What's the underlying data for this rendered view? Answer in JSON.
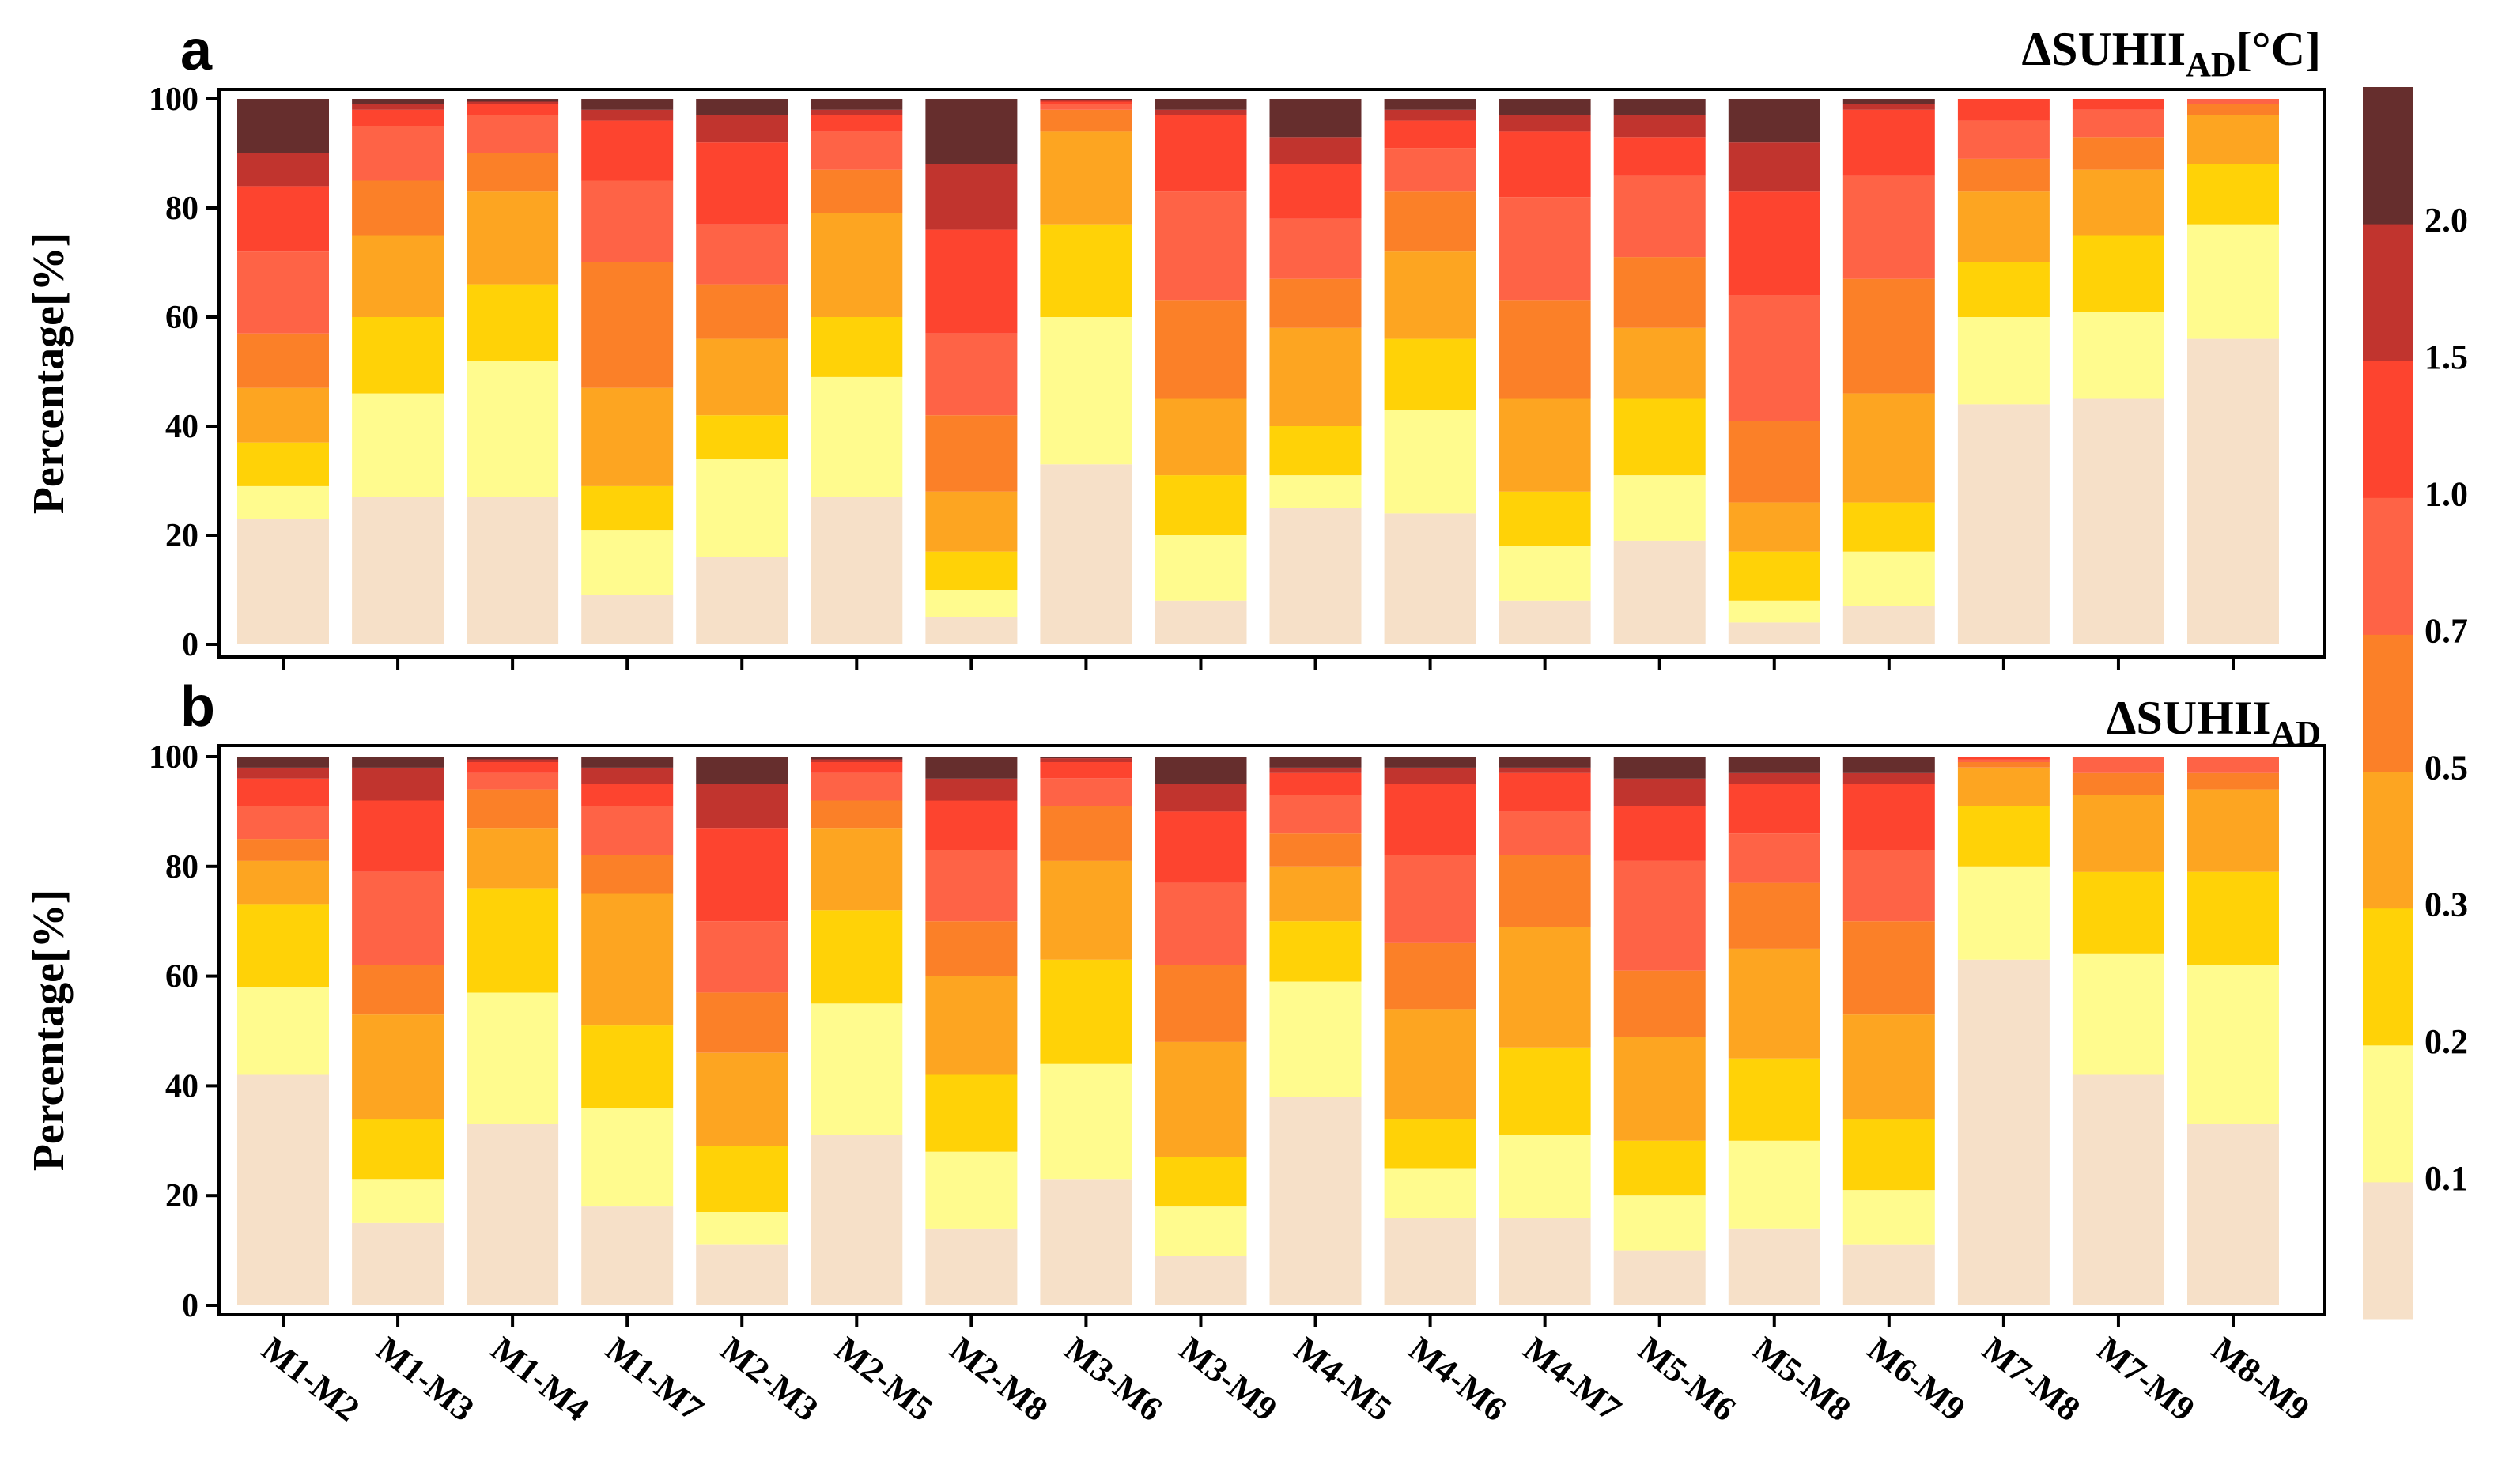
{
  "colors": [
    "#f6e0c8",
    "#fffb8e",
    "#ffd207",
    "#fda521",
    "#fb8028",
    "#fe6346",
    "#fd442f",
    "#c1342e",
    "#662e2d"
  ],
  "colorbar": {
    "labels": [
      "0.1",
      "0.2",
      "0.3",
      "0.5",
      "0.7",
      "1.0",
      "1.5",
      "2.0"
    ]
  },
  "categories": [
    "M1-M2",
    "M1-M3",
    "M1-M4",
    "M1-M7",
    "M2-M3",
    "M2-M5",
    "M2-M8",
    "M3-M6",
    "M3-M9",
    "M4-M5",
    "M4-M6",
    "M4-M7",
    "M5-M6",
    "M5-M8",
    "M6-M9",
    "M7-M8",
    "M7-M9",
    "M8-M9"
  ],
  "chart_data": [
    {
      "type": "bar",
      "stacked": true,
      "panel": "a",
      "title_main": "ΔSUHII",
      "title_sub": "AD",
      "title_unit": "[°C]",
      "ylabel": "Percentage[%]",
      "ylim": [
        0,
        100
      ],
      "yticks": [
        "0",
        "20",
        "40",
        "60",
        "80",
        "100"
      ],
      "categories": [
        "M1-M2",
        "M1-M3",
        "M1-M4",
        "M1-M7",
        "M2-M3",
        "M2-M5",
        "M2-M8",
        "M3-M6",
        "M3-M9",
        "M4-M5",
        "M4-M6",
        "M4-M7",
        "M5-M6",
        "M5-M8",
        "M6-M9",
        "M7-M8",
        "M7-M9",
        "M8-M9"
      ],
      "cumulative": [
        [
          23,
          29,
          37,
          47,
          57,
          72,
          84,
          90,
          100
        ],
        [
          27,
          46,
          60,
          75,
          85,
          95,
          98,
          99,
          100
        ],
        [
          27,
          52,
          66,
          83,
          90,
          97,
          99,
          99.5,
          100
        ],
        [
          9,
          21,
          29,
          47,
          70,
          85,
          96,
          98,
          100
        ],
        [
          16,
          34,
          42,
          56,
          66,
          77,
          92,
          97,
          100
        ],
        [
          27,
          49,
          60,
          79,
          87,
          94,
          97,
          98,
          100
        ],
        [
          5,
          10,
          17,
          28,
          42,
          57,
          76,
          88,
          100
        ],
        [
          33,
          60,
          77,
          94,
          98,
          99,
          99.5,
          99.8,
          100
        ],
        [
          8,
          20,
          31,
          45,
          63,
          83,
          97,
          98,
          100
        ],
        [
          25,
          31,
          40,
          58,
          67,
          78,
          88,
          93,
          100
        ],
        [
          24,
          43,
          56,
          72,
          83,
          91,
          96,
          98,
          100
        ],
        [
          8,
          18,
          28,
          45,
          63,
          82,
          94,
          97,
          100
        ],
        [
          19,
          31,
          45,
          58,
          71,
          86,
          93,
          97,
          100
        ],
        [
          4,
          8,
          17,
          26,
          41,
          64,
          83,
          92,
          100
        ],
        [
          7,
          17,
          26,
          46,
          67,
          86,
          98,
          99,
          100
        ],
        [
          44,
          60,
          70,
          83,
          89,
          96,
          100,
          100,
          100
        ],
        [
          45,
          61,
          75,
          87,
          93,
          98,
          100,
          100,
          100
        ],
        [
          56,
          77,
          88,
          97,
          99,
          100,
          100,
          100,
          100
        ]
      ]
    },
    {
      "type": "bar",
      "stacked": true,
      "panel": "b",
      "title_main": "ΔSUHII",
      "title_sub": "AD",
      "title_unit": "",
      "ylabel": "Percentage[%]",
      "ylim": [
        0,
        100
      ],
      "yticks": [
        "0",
        "20",
        "40",
        "60",
        "80",
        "100"
      ],
      "categories": [
        "M1-M2",
        "M1-M3",
        "M1-M4",
        "M1-M7",
        "M2-M3",
        "M2-M5",
        "M2-M8",
        "M3-M6",
        "M3-M9",
        "M4-M5",
        "M4-M6",
        "M4-M7",
        "M5-M6",
        "M5-M8",
        "M6-M9",
        "M7-M8",
        "M7-M9",
        "M8-M9"
      ],
      "cumulative": [
        [
          42,
          58,
          73,
          81,
          85,
          91,
          96,
          98,
          100
        ],
        [
          15,
          23,
          34,
          53,
          62,
          79,
          92,
          98,
          100
        ],
        [
          33,
          57,
          76,
          87,
          94,
          97,
          99,
          99.5,
          100
        ],
        [
          18,
          36,
          51,
          75,
          82,
          91,
          95,
          98,
          100
        ],
        [
          11,
          17,
          29,
          46,
          57,
          70,
          87,
          95,
          100
        ],
        [
          31,
          55,
          72,
          87,
          92,
          97,
          99,
          99.5,
          100
        ],
        [
          14,
          28,
          42,
          60,
          70,
          83,
          92,
          96,
          100
        ],
        [
          23,
          44,
          63,
          81,
          91,
          96,
          99,
          99.7,
          100
        ],
        [
          9,
          18,
          27,
          48,
          62,
          77,
          90,
          95,
          100
        ],
        [
          38,
          59,
          70,
          80,
          86,
          93,
          97,
          98,
          100
        ],
        [
          16,
          25,
          34,
          54,
          66,
          82,
          95,
          98,
          100
        ],
        [
          16,
          31,
          47,
          69,
          82,
          90,
          97,
          98,
          100
        ],
        [
          10,
          20,
          30,
          49,
          61,
          81,
          91,
          96,
          100
        ],
        [
          14,
          30,
          45,
          65,
          77,
          86,
          95,
          97,
          100
        ],
        [
          11,
          21,
          34,
          53,
          70,
          83,
          95,
          97,
          100
        ],
        [
          63,
          80,
          91,
          98,
          99,
          99.5,
          100,
          100,
          100
        ],
        [
          42,
          64,
          79,
          93,
          97,
          100,
          100,
          100,
          100
        ],
        [
          33,
          62,
          79,
          94,
          97,
          100,
          100,
          100,
          100
        ]
      ]
    }
  ]
}
